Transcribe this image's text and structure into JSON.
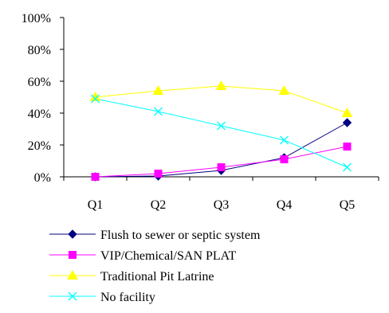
{
  "chart_data": {
    "type": "line",
    "categories": [
      "Q1",
      "Q2",
      "Q3",
      "Q4",
      "Q5"
    ],
    "ylim": [
      0,
      100
    ],
    "yticks": [
      "0%",
      "20%",
      "40%",
      "60%",
      "80%",
      "100%"
    ],
    "ytick_values": [
      0,
      20,
      40,
      60,
      80,
      100
    ],
    "grid": false,
    "legend_position": "bottom",
    "series": [
      {
        "name": "Flush to sewer or septic system",
        "values": [
          0,
          0.5,
          4,
          12,
          34
        ],
        "color": "#000080",
        "marker": "diamond"
      },
      {
        "name": "VIP/Chemical/SAN PLAT",
        "values": [
          0,
          2,
          6,
          11,
          19
        ],
        "color": "#FF00FF",
        "marker": "square"
      },
      {
        "name": "Traditional Pit Latrine",
        "values": [
          50,
          54,
          57,
          54,
          40
        ],
        "color": "#FFFF00",
        "marker": "triangle"
      },
      {
        "name": "No facility",
        "values": [
          49,
          41,
          32,
          23,
          6
        ],
        "color": "#00FFFF",
        "marker": "x"
      }
    ]
  }
}
